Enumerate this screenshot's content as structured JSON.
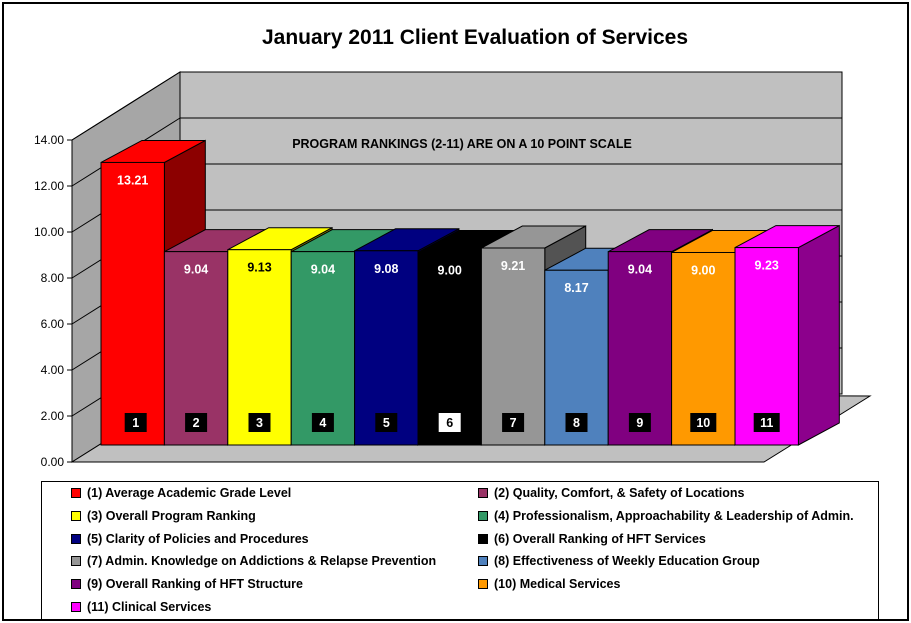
{
  "chart_data": {
    "type": "bar",
    "title": "January 2011 Client Evaluation of Services",
    "annotation": "PROGRAM RANKINGS (2-11) ARE ON A 10 POINT SCALE",
    "ylim": [
      0,
      14
    ],
    "yticks": [
      "0.00",
      "2.00",
      "4.00",
      "6.00",
      "8.00",
      "10.00",
      "12.00",
      "14.00"
    ],
    "categories": [
      "1",
      "2",
      "3",
      "4",
      "5",
      "6",
      "7",
      "8",
      "9",
      "10",
      "11"
    ],
    "values": [
      13.21,
      9.04,
      9.13,
      9.04,
      9.08,
      9.0,
      9.21,
      8.17,
      9.04,
      9.0,
      9.23
    ],
    "value_labels": [
      "13.21",
      "9.04",
      "9.13",
      "9.04",
      "9.08",
      "9.00",
      "9.21",
      "8.17",
      "9.04",
      "9.00",
      "9.23"
    ],
    "colors": [
      "#ff0000",
      "#993366",
      "#ffff00",
      "#339966",
      "#000080",
      "#000000",
      "#969696",
      "#4f81bd",
      "#800080",
      "#ff9900",
      "#ff00ff"
    ],
    "value_label_colors": [
      "#ffffff",
      "#ffffff",
      "#000000",
      "#ffffff",
      "#ffffff",
      "#ffffff",
      "#ffffff",
      "#ffffff",
      "#ffffff",
      "#ffffff",
      "#ffffff"
    ],
    "series_names": [
      "(1) Average Academic Grade Level",
      "(2) Quality, Comfort, & Safety of Locations",
      "(3) Overall Program Ranking",
      "(4) Professionalism, Approachability  & Leadership of Admin.",
      "(5) Clarity of Policies and Procedures",
      "(6) Overall Ranking of HFT Services",
      "(7) Admin. Knowledge on Addictions & Relapse Prevention",
      "(8) Effectiveness of Weekly Education Group",
      "(9) Overall Ranking of HFT Structure",
      "(10) Medical Services",
      "(11) Clinical Services"
    ],
    "grid": true,
    "legend_position": "bottom"
  }
}
